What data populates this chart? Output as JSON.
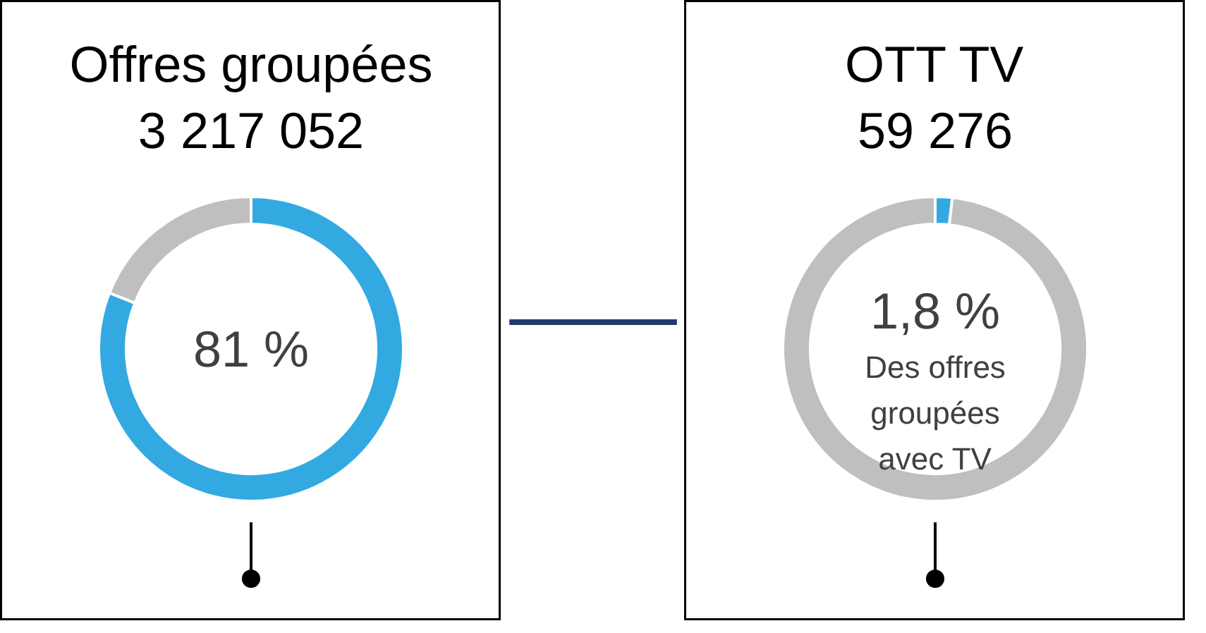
{
  "chart_data": [
    {
      "type": "donut",
      "title": "Offres groupées",
      "subtitle": "3 217 052",
      "categories": [
        null,
        null
      ],
      "values": [
        81,
        19
      ],
      "colors": [
        "#33a9e1",
        "#bfbfbf"
      ],
      "annotations": [
        "81 %"
      ]
    },
    {
      "type": "donut",
      "title": "OTT TV",
      "subtitle": "59 276",
      "categories": [
        null,
        null
      ],
      "values": [
        1.8,
        98.2
      ],
      "colors": [
        "#33a9e1",
        "#bfbfbf"
      ],
      "annotations": [
        "1,8 %",
        "Des offres groupées avec TV"
      ]
    }
  ]
}
